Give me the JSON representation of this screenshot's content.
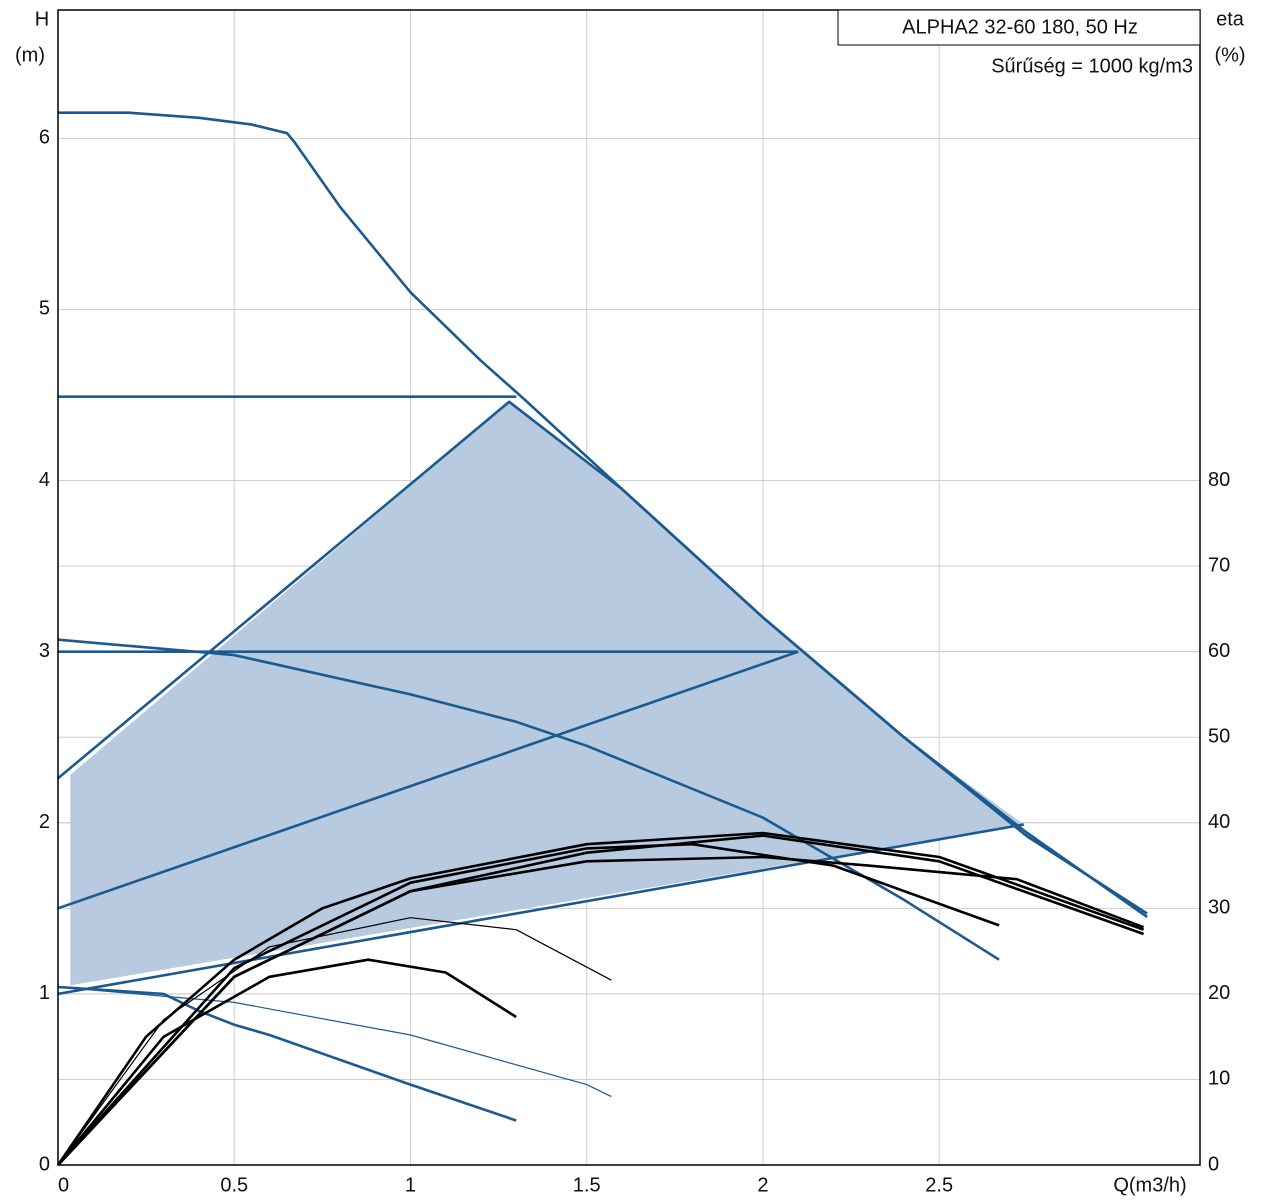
{
  "chart_data": {
    "type": "line",
    "legend_lines": [
      "ALPHA2 32-60 180, 50 Hz",
      "Sűrűség = 1000 kg/m3"
    ],
    "ylabel": [
      "H",
      "(m)"
    ],
    "y2label": [
      "eta",
      "(%)"
    ],
    "xlabel": "Q(m3/h)",
    "xlim": [
      0,
      3.24
    ],
    "ylim": [
      0,
      6.75
    ],
    "y2lim": [
      0,
      135
    ],
    "xticks": [
      0,
      0.5,
      1,
      1.5,
      2,
      2.5
    ],
    "yticks": [
      0,
      1,
      2,
      3,
      4,
      5,
      6
    ],
    "y2ticks": [
      0,
      10,
      20,
      30,
      40,
      50,
      60,
      70,
      80
    ],
    "grid": true,
    "series": [
      {
        "type": "area",
        "color": "#b7cadf",
        "x": [
          0.035,
          0.035,
          1.28,
          1.6,
          2.0,
          2.4,
          2.74
        ],
        "values": [
          1.05,
          2.28,
          4.46,
          3.95,
          3.2,
          2.5,
          1.99
        ]
      },
      {
        "color": "#1b5a91",
        "x": [
          0,
          0.2,
          0.4,
          0.55,
          0.65,
          0.67,
          0.8,
          1.0,
          1.2,
          1.32,
          1.6,
          2.0,
          2.4,
          2.75,
          3.09
        ],
        "values": [
          6.15,
          6.15,
          6.12,
          6.08,
          6.03,
          5.98,
          5.6,
          5.1,
          4.7,
          4.48,
          3.95,
          3.2,
          2.5,
          1.92,
          1.47
        ]
      },
      {
        "color": "#1b5a91",
        "x": [
          0,
          1.3
        ],
        "values": [
          4.49,
          4.49
        ]
      },
      {
        "color": "#1b5a91",
        "x": [
          0,
          1.28,
          1.6,
          2.0,
          2.4,
          2.75,
          3.09
        ],
        "values": [
          2.26,
          4.46,
          3.95,
          3.2,
          2.5,
          1.94,
          1.45
        ]
      },
      {
        "color": "#1b5a91",
        "x": [
          0,
          2.1
        ],
        "values": [
          3.0,
          3.0
        ]
      },
      {
        "color": "#1b5a91",
        "x": [
          0,
          2.1
        ],
        "values": [
          1.5,
          3.0
        ]
      },
      {
        "color": "#1b5a91",
        "x": [
          0,
          2.74
        ],
        "values": [
          1.0,
          1.99
        ]
      },
      {
        "color": "#1b5a91",
        "x": [
          0,
          0.5,
          1.0,
          1.3,
          1.5,
          2.0,
          2.4,
          2.67
        ],
        "values": [
          3.07,
          2.98,
          2.75,
          2.59,
          2.45,
          2.03,
          1.55,
          1.2
        ]
      },
      {
        "color": "#1b5a91",
        "x": [
          0,
          0.3,
          0.4,
          0.5,
          0.6,
          1.0,
          1.3
        ],
        "values": [
          1.04,
          1.0,
          0.9,
          0.82,
          0.76,
          0.47,
          0.26
        ]
      },
      {
        "color": "#1b5a91",
        "width": 1.2,
        "x": [
          0,
          0.5,
          1.0,
          1.5,
          1.57
        ],
        "values": [
          1.04,
          0.95,
          0.76,
          0.47,
          0.4
        ]
      },
      {
        "color": "#000000",
        "axis": "y2",
        "x": [
          0,
          0.25,
          0.5,
          0.75,
          1,
          1.5,
          2,
          2.5,
          3.08
        ],
        "values": [
          0,
          15,
          24,
          30,
          33.5,
          37.5,
          38.8,
          36,
          27.5
        ]
      },
      {
        "color": "#000000",
        "axis": "y2",
        "x": [
          0,
          0.5,
          1,
          1.5,
          2,
          2.5,
          3.08
        ],
        "values": [
          0,
          22,
          32,
          36.5,
          38.5,
          35.5,
          27
        ]
      },
      {
        "color": "#000000",
        "axis": "y2",
        "x": [
          0,
          0.5,
          1,
          1.5,
          1.8,
          2.2,
          2.67
        ],
        "values": [
          0,
          23,
          33,
          37,
          37.5,
          35,
          28
        ]
      },
      {
        "color": "#000000",
        "axis": "y2",
        "x": [
          0,
          0.5,
          1,
          1.5,
          2,
          2.3,
          2.72,
          3.08
        ],
        "values": [
          0,
          22,
          32,
          35.5,
          36,
          35,
          33.4,
          27.8
        ]
      },
      {
        "color": "#000000",
        "axis": "y2",
        "width": 1.2,
        "x": [
          0,
          0.3,
          0.6,
          1.0,
          1.3,
          1.57
        ],
        "values": [
          0,
          17,
          25.5,
          28.9,
          27.5,
          21.6
        ]
      },
      {
        "color": "#000000",
        "axis": "y2",
        "x": [
          0,
          0.3,
          0.6,
          0.88,
          1.1,
          1.3
        ],
        "values": [
          0,
          15,
          22,
          24,
          22.5,
          17.3
        ]
      }
    ]
  }
}
